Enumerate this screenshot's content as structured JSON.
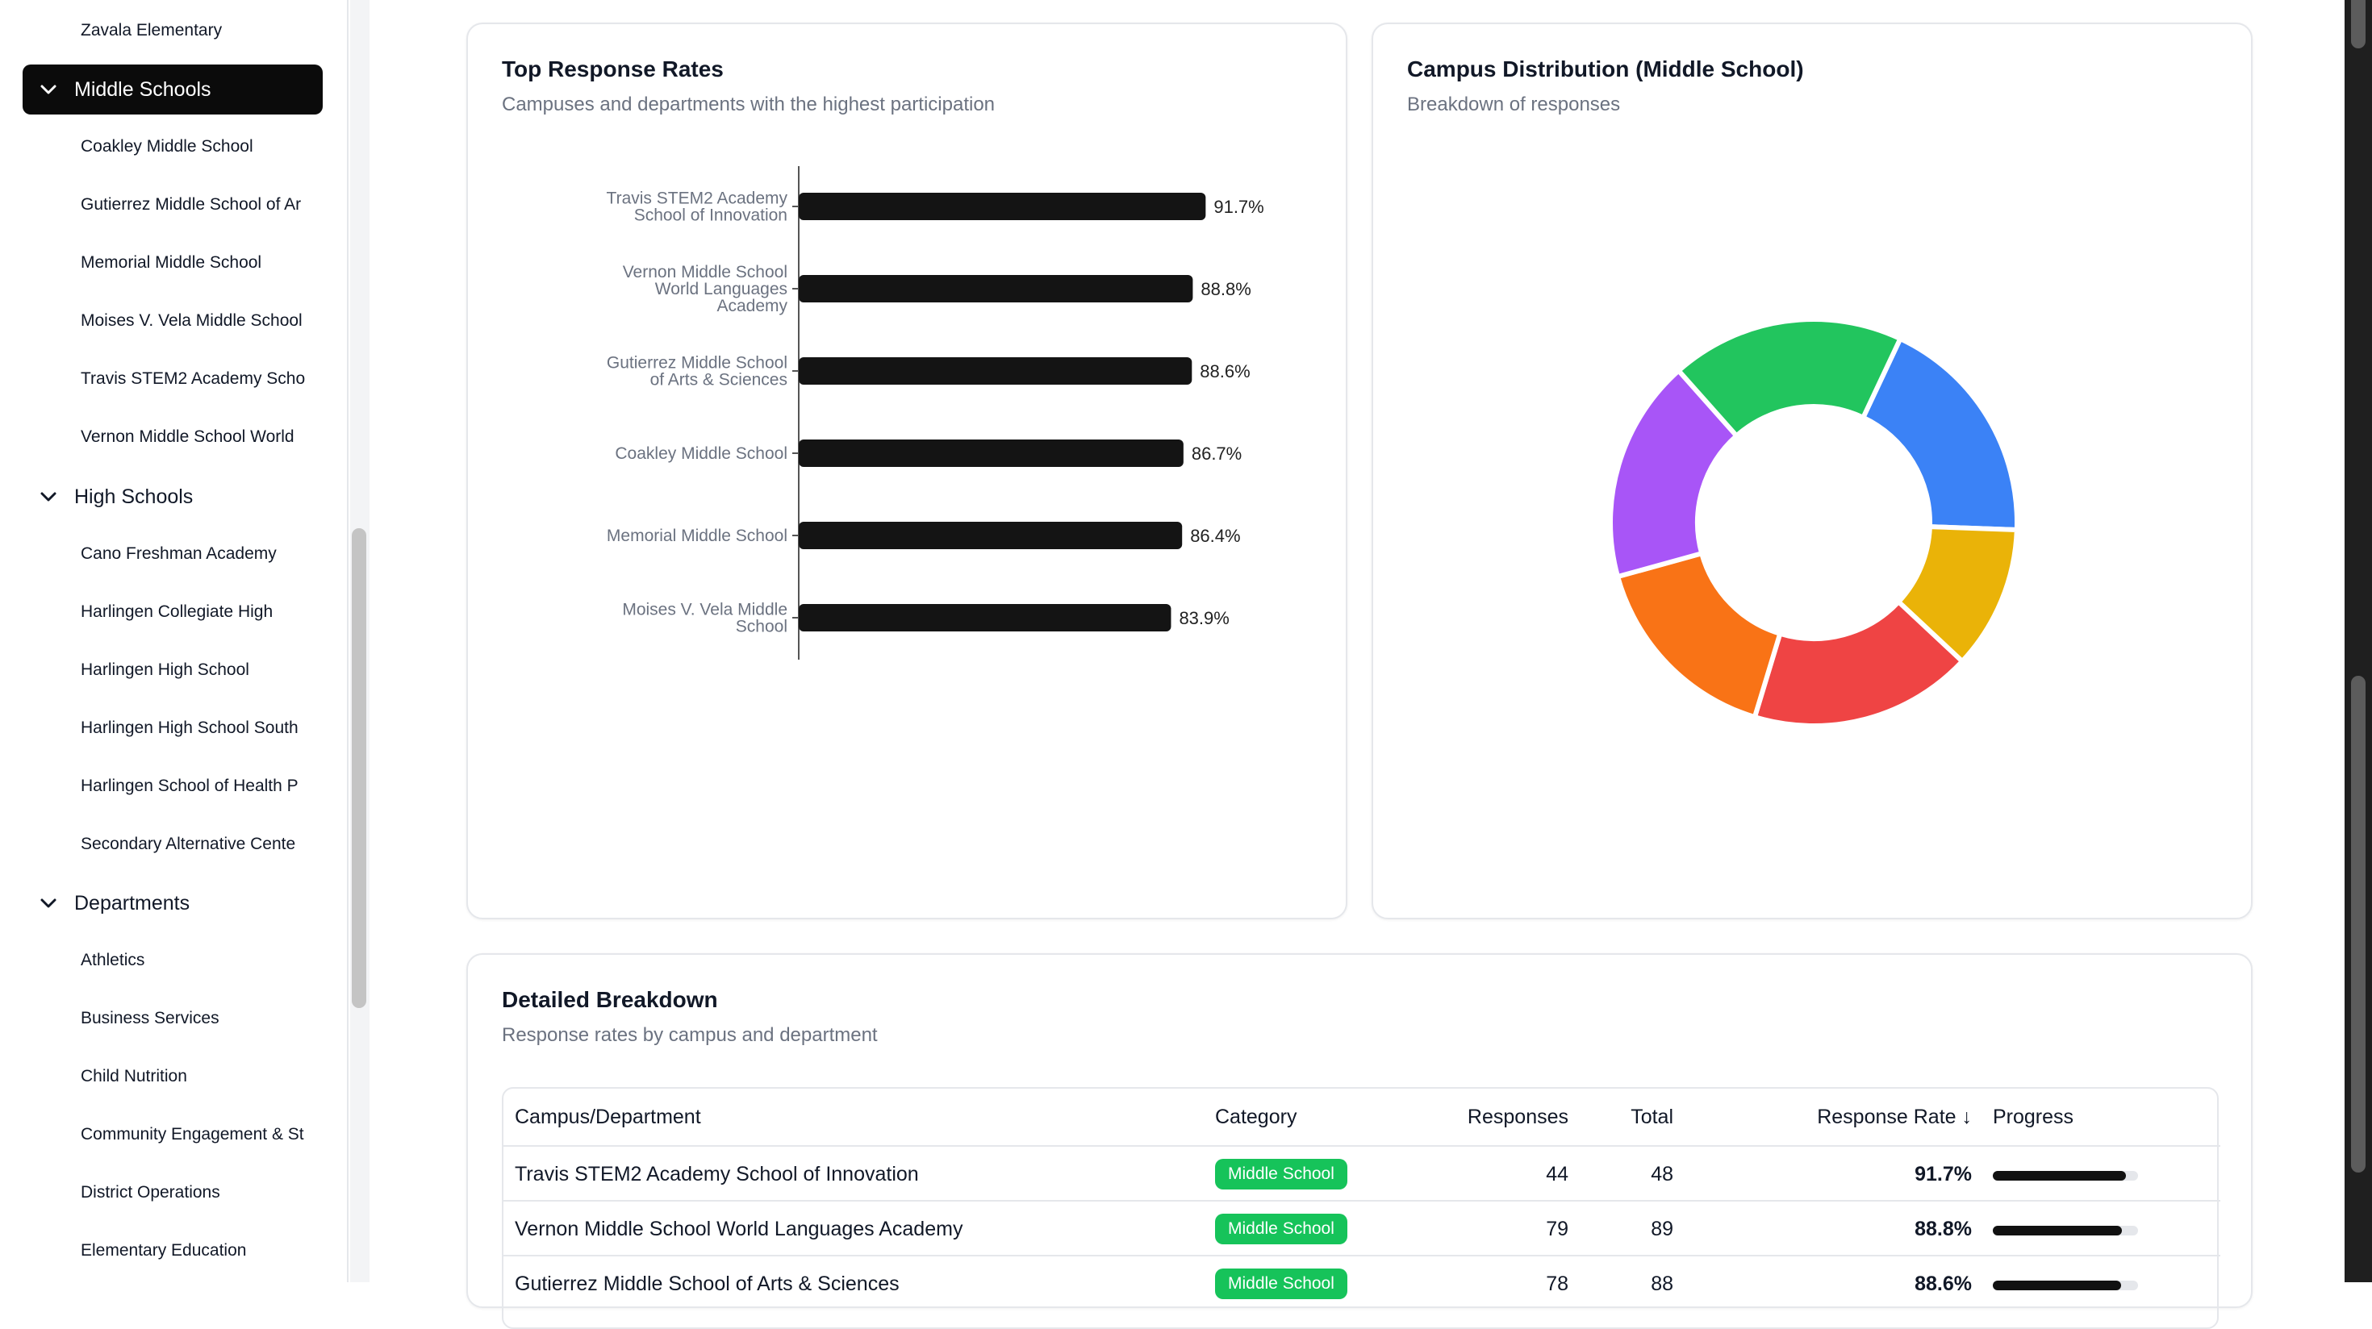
{
  "sidebar": {
    "elementary_tail": "Zavala Elementary",
    "groups": {
      "middle": "Middle Schools",
      "high": "High Schools",
      "departments": "Departments"
    },
    "middle_items": [
      "Coakley Middle School",
      "Gutierrez Middle School of Ar",
      "Memorial Middle School",
      "Moises V. Vela Middle School",
      "Travis STEM2 Academy Scho",
      "Vernon Middle School World"
    ],
    "high_items": [
      "Cano Freshman Academy",
      "Harlingen Collegiate High",
      "Harlingen High School",
      "Harlingen High School South",
      "Harlingen School of Health P",
      "Secondary Alternative Cente"
    ],
    "department_items": [
      "Athletics",
      "Business Services",
      "Child Nutrition",
      "Community Engagement & St",
      "District Operations",
      "Elementary Education"
    ]
  },
  "top_rates": {
    "title": "Top Response Rates",
    "subtitle": "Campuses and departments with the highest participation"
  },
  "distribution": {
    "title": "Campus Distribution (Middle School)",
    "subtitle": "Breakdown of responses"
  },
  "chart_data": [
    {
      "type": "bar",
      "orientation": "horizontal",
      "categories": [
        [
          "Travis STEM2 Academy",
          "School of Innovation"
        ],
        [
          "Vernon Middle School",
          "World Languages",
          "Academy"
        ],
        [
          "Gutierrez Middle School",
          "of Arts & Sciences"
        ],
        [
          "Coakley Middle School"
        ],
        [
          "Memorial Middle School"
        ],
        [
          "Moises V. Vela Middle",
          "School"
        ]
      ],
      "values": [
        91.7,
        88.8,
        88.6,
        86.7,
        86.4,
        83.9
      ],
      "labels": [
        "91.7%",
        "88.8%",
        "88.6%",
        "86.7%",
        "86.4%",
        "83.9%"
      ],
      "xlim": [
        0,
        100
      ],
      "grid": false,
      "bar_color": "#141414"
    },
    {
      "type": "pie",
      "donut": true,
      "slices": [
        {
          "value": 44,
          "color": "#3b82f6"
        },
        {
          "value": 27,
          "color": "#eab308"
        },
        {
          "value": 42,
          "color": "#ef4444"
        },
        {
          "value": 38,
          "color": "#f97316"
        },
        {
          "value": 42,
          "color": "#a855f7"
        },
        {
          "value": 44,
          "color": "#22c55e"
        }
      ]
    }
  ],
  "breakdown": {
    "title": "Detailed Breakdown",
    "subtitle": "Response rates by campus and department",
    "headers": {
      "campus": "Campus/Department",
      "category": "Category",
      "responses": "Responses",
      "total": "Total",
      "rate": "Response Rate ↓",
      "progress": "Progress"
    },
    "rows": [
      {
        "campus": "Travis STEM2 Academy School of Innovation",
        "category": "Middle School",
        "responses": "44",
        "total": "48",
        "rate": "91.7%",
        "progress": 0.917
      },
      {
        "campus": "Vernon Middle School World Languages Academy",
        "category": "Middle School",
        "responses": "79",
        "total": "89",
        "rate": "88.8%",
        "progress": 0.888
      },
      {
        "campus": "Gutierrez Middle School of Arts & Sciences",
        "category": "Middle School",
        "responses": "78",
        "total": "88",
        "rate": "88.6%",
        "progress": 0.886
      }
    ]
  }
}
